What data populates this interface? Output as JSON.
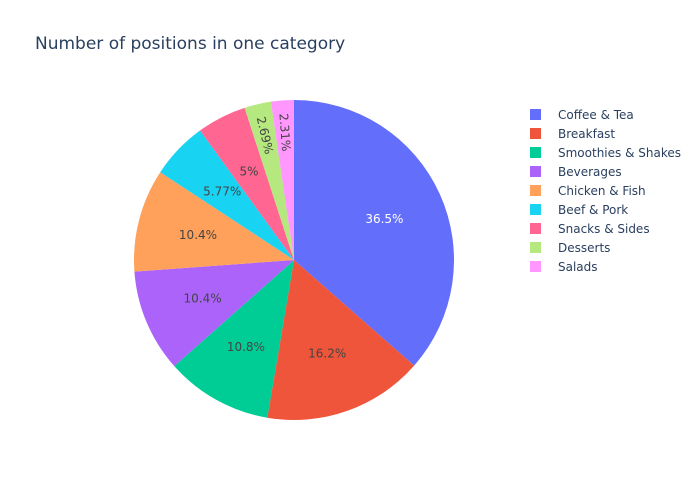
{
  "chart_data": {
    "type": "pie",
    "title": "Number of positions in one category",
    "categories": [
      "Coffee & Tea",
      "Breakfast",
      "Smoothies & Shakes",
      "Beverages",
      "Chicken & Fish",
      "Beef & Pork",
      "Snacks & Sides",
      "Desserts",
      "Salads"
    ],
    "values": [
      36.5,
      16.2,
      10.8,
      10.4,
      10.4,
      5.77,
      5,
      2.69,
      2.31
    ],
    "labels": [
      "36.5%",
      "16.2%",
      "10.8%",
      "10.4%",
      "10.4%",
      "5.77%",
      "5%",
      "2.69%",
      "2.31%"
    ],
    "colors": [
      "#636efa",
      "#ef553b",
      "#00cc96",
      "#ab63fa",
      "#ffa15a",
      "#19d3f3",
      "#ff6692",
      "#b6e880",
      "#ff97ff"
    ],
    "label_colors": [
      "#ffffff",
      "#444444",
      "#444444",
      "#444444",
      "#444444",
      "#444444",
      "#444444",
      "#444444",
      "#444444"
    ],
    "legend_position": "right",
    "direction": "clockwise",
    "start": "top"
  }
}
